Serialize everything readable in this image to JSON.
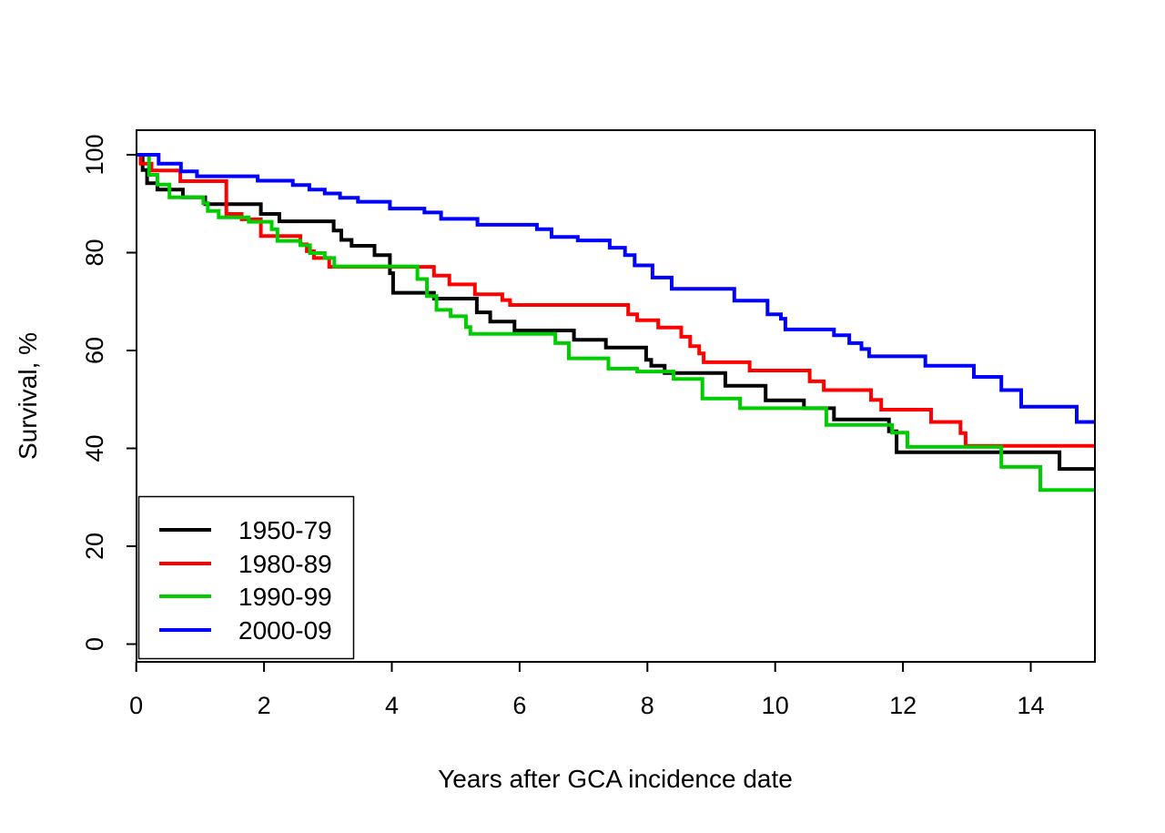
{
  "chart_data": {
    "type": "line",
    "subtype": "kaplan-meier-step-curves",
    "title": "",
    "xlabel": "Years after GCA incidence date",
    "ylabel": "Survival, %",
    "xlim": [
      0,
      15
    ],
    "ylim": [
      0,
      100
    ],
    "x_ticks": [
      0,
      2,
      4,
      6,
      8,
      10,
      12,
      14
    ],
    "y_ticks": [
      0,
      20,
      40,
      60,
      80,
      100
    ],
    "grid": false,
    "legend_position": "bottom-left",
    "x_end": 15,
    "series": [
      {
        "name": "1950-79",
        "color": "#000000",
        "steps": [
          [
            0,
            100
          ],
          [
            0.1,
            96.9
          ],
          [
            0.17,
            94.2
          ],
          [
            0.33,
            92.9
          ],
          [
            0.73,
            91.3
          ],
          [
            1.08,
            89.9
          ],
          [
            1.95,
            87.9
          ],
          [
            2.24,
            86.4
          ],
          [
            3.09,
            84.5
          ],
          [
            3.21,
            82.6
          ],
          [
            3.37,
            81.4
          ],
          [
            3.73,
            79.5
          ],
          [
            3.97,
            75.8
          ],
          [
            4.02,
            71.8
          ],
          [
            4.66,
            70.6
          ],
          [
            5.33,
            67.8
          ],
          [
            5.54,
            65.9
          ],
          [
            5.92,
            64.1
          ],
          [
            6.85,
            62.2
          ],
          [
            7.35,
            60.6
          ],
          [
            7.98,
            58.1
          ],
          [
            8.06,
            56.9
          ],
          [
            8.27,
            55.4
          ],
          [
            9.22,
            52.8
          ],
          [
            9.85,
            49.8
          ],
          [
            10.45,
            48.2
          ],
          [
            10.92,
            45.9
          ],
          [
            11.78,
            43.5
          ],
          [
            11.9,
            39.2
          ],
          [
            14.45,
            35.8
          ]
        ]
      },
      {
        "name": "1980-89",
        "color": "#ff0000",
        "steps": [
          [
            0,
            100
          ],
          [
            0.07,
            98.2
          ],
          [
            0.24,
            96.8
          ],
          [
            0.69,
            94.6
          ],
          [
            1.41,
            87.9
          ],
          [
            1.65,
            86.8
          ],
          [
            1.95,
            83.4
          ],
          [
            2.57,
            81.7
          ],
          [
            2.67,
            80.3
          ],
          [
            2.78,
            78.9
          ],
          [
            3.02,
            77.1
          ],
          [
            4.66,
            75.3
          ],
          [
            4.9,
            73.5
          ],
          [
            5.3,
            71.5
          ],
          [
            5.73,
            70.3
          ],
          [
            5.85,
            69.3
          ],
          [
            7.7,
            67.4
          ],
          [
            7.84,
            66.2
          ],
          [
            8.17,
            64.7
          ],
          [
            8.53,
            62.8
          ],
          [
            8.67,
            60.9
          ],
          [
            8.81,
            59.4
          ],
          [
            8.88,
            57.6
          ],
          [
            9.6,
            55.9
          ],
          [
            10.54,
            53.7
          ],
          [
            10.76,
            51.9
          ],
          [
            11.5,
            49.9
          ],
          [
            11.66,
            47.9
          ],
          [
            12.44,
            45.4
          ],
          [
            12.9,
            43.1
          ],
          [
            12.98,
            40.5
          ]
        ]
      },
      {
        "name": "1990-99",
        "color": "#00cd00",
        "steps": [
          [
            0,
            100
          ],
          [
            0.2,
            95.9
          ],
          [
            0.33,
            93.9
          ],
          [
            0.52,
            91.3
          ],
          [
            1.05,
            90.1
          ],
          [
            1.12,
            88.5
          ],
          [
            1.29,
            87.2
          ],
          [
            1.76,
            86.3
          ],
          [
            2.12,
            84.8
          ],
          [
            2.21,
            82.4
          ],
          [
            2.57,
            81.5
          ],
          [
            2.72,
            79.9
          ],
          [
            2.95,
            78.9
          ],
          [
            3.1,
            77.2
          ],
          [
            4.4,
            74.6
          ],
          [
            4.55,
            71.1
          ],
          [
            4.7,
            68.3
          ],
          [
            4.92,
            67.0
          ],
          [
            5.16,
            64.8
          ],
          [
            5.23,
            63.4
          ],
          [
            6.56,
            61.5
          ],
          [
            6.77,
            58.4
          ],
          [
            7.39,
            56.3
          ],
          [
            7.84,
            55.7
          ],
          [
            8.41,
            54.2
          ],
          [
            8.86,
            50.2
          ],
          [
            9.45,
            48.2
          ],
          [
            10.8,
            44.8
          ],
          [
            11.83,
            43.2
          ],
          [
            12.07,
            40.3
          ],
          [
            13.54,
            36.2
          ],
          [
            14.15,
            31.5
          ]
        ]
      },
      {
        "name": "2000-09",
        "color": "#0000ff",
        "steps": [
          [
            0,
            100
          ],
          [
            0.35,
            98.2
          ],
          [
            0.7,
            96.6
          ],
          [
            0.95,
            95.6
          ],
          [
            1.9,
            94.7
          ],
          [
            2.45,
            93.8
          ],
          [
            2.71,
            92.9
          ],
          [
            2.95,
            92.1
          ],
          [
            3.19,
            91.2
          ],
          [
            3.47,
            90.4
          ],
          [
            3.97,
            89.0
          ],
          [
            4.51,
            88.2
          ],
          [
            4.77,
            86.9
          ],
          [
            5.34,
            85.7
          ],
          [
            6.27,
            84.8
          ],
          [
            6.5,
            83.2
          ],
          [
            6.91,
            82.5
          ],
          [
            7.41,
            81.0
          ],
          [
            7.65,
            79.5
          ],
          [
            7.8,
            77.4
          ],
          [
            8.08,
            74.9
          ],
          [
            8.38,
            72.6
          ],
          [
            9.36,
            70.2
          ],
          [
            9.88,
            67.4
          ],
          [
            10.09,
            66.5
          ],
          [
            10.16,
            64.3
          ],
          [
            10.92,
            63.1
          ],
          [
            11.16,
            61.5
          ],
          [
            11.35,
            60.3
          ],
          [
            11.47,
            58.8
          ],
          [
            12.35,
            56.9
          ],
          [
            13.11,
            54.6
          ],
          [
            13.54,
            51.9
          ],
          [
            13.85,
            48.5
          ],
          [
            14.72,
            45.4
          ]
        ]
      }
    ]
  }
}
